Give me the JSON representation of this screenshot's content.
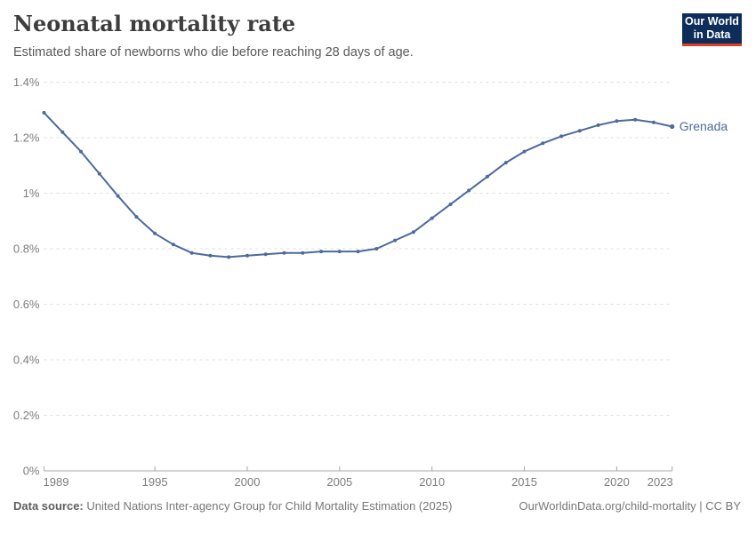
{
  "header": {
    "title": "Neonatal mortality rate",
    "subtitle": "Estimated share of newborns who die before reaching 28 days of age.",
    "logo": {
      "line1": "Our World",
      "line2": "in Data",
      "bg_color": "#0d2e5a",
      "accent_color": "#dc3e26"
    }
  },
  "chart_data": {
    "type": "line",
    "title": "Neonatal mortality rate",
    "xlabel": "",
    "ylabel": "",
    "unit": "%",
    "grid": true,
    "xlim": [
      1989,
      2023
    ],
    "ylim": [
      0,
      1.4
    ],
    "x_ticks": [
      1989,
      1995,
      2000,
      2005,
      2010,
      2015,
      2020,
      2023
    ],
    "y_tick_labels": [
      "0%",
      "0.2%",
      "0.4%",
      "0.6%",
      "0.8%",
      "1%",
      "1.2%",
      "1.4%"
    ],
    "y_tick_values": [
      0,
      0.2,
      0.4,
      0.6,
      0.8,
      1,
      1.2,
      1.4
    ],
    "grid_color": "#dddddd",
    "axis_color": "#a5a5a5",
    "legend_position": "right-end-of-line",
    "series": [
      {
        "name": "Grenada",
        "color": "#4c6a9c",
        "x": [
          1989,
          1990,
          1991,
          1992,
          1993,
          1994,
          1995,
          1996,
          1997,
          1998,
          1999,
          2000,
          2001,
          2002,
          2003,
          2004,
          2005,
          2006,
          2007,
          2008,
          2009,
          2010,
          2011,
          2012,
          2013,
          2014,
          2015,
          2016,
          2017,
          2018,
          2019,
          2020,
          2021,
          2022,
          2023
        ],
        "values": [
          1.29,
          1.22,
          1.15,
          1.07,
          0.99,
          0.915,
          0.855,
          0.815,
          0.785,
          0.775,
          0.77,
          0.775,
          0.78,
          0.785,
          0.785,
          0.79,
          0.79,
          0.79,
          0.8,
          0.83,
          0.86,
          0.91,
          0.96,
          1.01,
          1.06,
          1.11,
          1.15,
          1.18,
          1.205,
          1.225,
          1.245,
          1.26,
          1.265,
          1.255,
          1.24
        ]
      }
    ]
  },
  "footer": {
    "source_label": "Data source:",
    "source_text": " United Nations Inter-agency Group for Child Mortality Estimation (2025)",
    "link_text": "OurWorldinData.org/child-mortality | CC BY"
  }
}
